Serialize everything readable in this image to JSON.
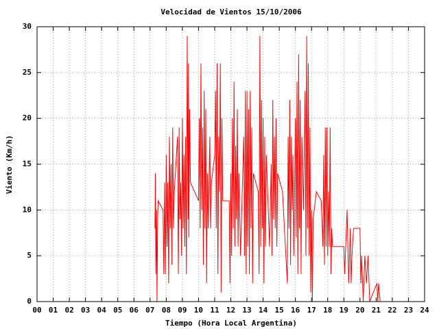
{
  "chart_data": {
    "type": "line",
    "title": "Velocidad de Vientos 15/10/2006",
    "xlabel": "Tiempo (Hora Local Argentina)",
    "ylabel": "Viento (Km/h)",
    "color": "#ff0000",
    "grid": true,
    "xlim": [
      0,
      24
    ],
    "ylim": [
      0,
      30
    ],
    "yticks": [
      0,
      5,
      10,
      15,
      20,
      25,
      30
    ],
    "xticks": [
      {
        "value": 0,
        "label": "00"
      },
      {
        "value": 1,
        "label": "01"
      },
      {
        "value": 2,
        "label": "02"
      },
      {
        "value": 3,
        "label": "03"
      },
      {
        "value": 4,
        "label": "04"
      },
      {
        "value": 5,
        "label": "05"
      },
      {
        "value": 6,
        "label": "06"
      },
      {
        "value": 7,
        "label": "07"
      },
      {
        "value": 8,
        "label": "08"
      },
      {
        "value": 9,
        "label": "09"
      },
      {
        "value": 10,
        "label": "10"
      },
      {
        "value": 11,
        "label": "11"
      },
      {
        "value": 12,
        "label": "12"
      },
      {
        "value": 13,
        "label": "13"
      },
      {
        "value": 14,
        "label": "14"
      },
      {
        "value": 15,
        "label": "15"
      },
      {
        "value": 16,
        "label": "16"
      },
      {
        "value": 17,
        "label": "17"
      },
      {
        "value": 18,
        "label": "18"
      },
      {
        "value": 19,
        "label": "19"
      },
      {
        "value": 20,
        "label": "20"
      },
      {
        "value": 21,
        "label": "21"
      },
      {
        "value": 22,
        "label": "22"
      },
      {
        "value": 23,
        "label": "23"
      },
      {
        "value": 24,
        "label": "24"
      }
    ],
    "x": [
      7.3,
      7.33,
      7.36,
      7.4,
      7.43,
      7.47,
      7.5,
      7.8,
      7.85,
      7.9,
      7.95,
      8.0,
      8.05,
      8.1,
      8.15,
      8.2,
      8.25,
      8.3,
      8.35,
      8.4,
      8.45,
      8.5,
      8.7,
      8.75,
      8.8,
      8.85,
      8.9,
      8.95,
      9.0,
      9.05,
      9.1,
      9.15,
      9.2,
      9.25,
      9.3,
      9.35,
      9.38,
      9.4,
      9.45,
      9.5,
      10.0,
      10.05,
      10.1,
      10.15,
      10.2,
      10.25,
      10.3,
      10.35,
      10.4,
      10.45,
      10.5,
      10.55,
      10.6,
      10.7,
      10.75,
      10.8,
      11.0,
      11.05,
      11.1,
      11.15,
      11.2,
      11.25,
      11.3,
      11.35,
      11.4,
      11.45,
      11.5,
      11.9,
      11.95,
      12.0,
      12.05,
      12.1,
      12.15,
      12.2,
      12.25,
      12.3,
      12.35,
      12.4,
      12.45,
      12.5,
      12.6,
      12.8,
      12.85,
      12.9,
      12.95,
      13.0,
      13.05,
      13.1,
      13.15,
      13.2,
      13.25,
      13.3,
      13.35,
      13.4,
      13.7,
      13.75,
      13.8,
      13.85,
      13.9,
      13.95,
      14.0,
      14.05,
      14.1,
      14.15,
      14.2,
      14.4,
      14.5,
      14.55,
      14.6,
      14.65,
      14.7,
      14.75,
      14.8,
      14.85,
      14.9,
      15.2,
      15.5,
      15.55,
      15.6,
      15.65,
      15.7,
      15.75,
      15.8,
      15.85,
      15.9,
      16.0,
      16.05,
      16.1,
      16.15,
      16.2,
      16.25,
      16.3,
      16.35,
      16.4,
      16.5,
      16.6,
      16.65,
      16.7,
      16.75,
      16.8,
      16.85,
      16.9,
      16.95,
      17.0,
      17.05,
      17.1,
      17.3,
      17.6,
      17.7,
      17.75,
      17.8,
      17.85,
      17.9,
      17.95,
      18.0,
      18.05,
      18.1,
      18.15,
      18.2,
      18.25,
      18.3,
      19.0,
      19.05,
      19.2,
      19.3,
      19.4,
      19.45,
      19.5,
      19.6,
      20.0,
      20.05,
      20.1,
      20.2,
      20.3,
      20.4,
      20.5,
      20.6,
      21.05,
      21.1,
      21.15,
      21.25
    ],
    "values": [
      8,
      14,
      3,
      10,
      0,
      9,
      11,
      10,
      3,
      13,
      3,
      16,
      6,
      13,
      2,
      18,
      8,
      15,
      4,
      19,
      8,
      12,
      18,
      3,
      19,
      9,
      13,
      5,
      20,
      8,
      16,
      6,
      18,
      3,
      29,
      9,
      26,
      7,
      21,
      13,
      11,
      20,
      8,
      26,
      10,
      19,
      4,
      23,
      8,
      21,
      2,
      14,
      8,
      18,
      8,
      13,
      16,
      23,
      8,
      26,
      3,
      18,
      12,
      26,
      1,
      20,
      11,
      11,
      2,
      14,
      5,
      20,
      8,
      24,
      6,
      17,
      9,
      21,
      6,
      14,
      5,
      18,
      5,
      23,
      3,
      23,
      6,
      21,
      3,
      23,
      8,
      19,
      2,
      14,
      12,
      3,
      29,
      6,
      22,
      8,
      20,
      2,
      18,
      6,
      16,
      6,
      15,
      5,
      22,
      9,
      18,
      8,
      20,
      6,
      14,
      12,
      2,
      18,
      8,
      22,
      4,
      18,
      10,
      16,
      5,
      20,
      7,
      24,
      3,
      27,
      8,
      22,
      3,
      18,
      10,
      23,
      5,
      29,
      8,
      26,
      5,
      19,
      1,
      10,
      0,
      9,
      12,
      11,
      6,
      16,
      4,
      19,
      6,
      19,
      5,
      12,
      6,
      19,
      3,
      8,
      6,
      6,
      3,
      10,
      2,
      8,
      2,
      5,
      8,
      8,
      2,
      5,
      0,
      5,
      2,
      5,
      0,
      2,
      0,
      2,
      0
    ]
  }
}
